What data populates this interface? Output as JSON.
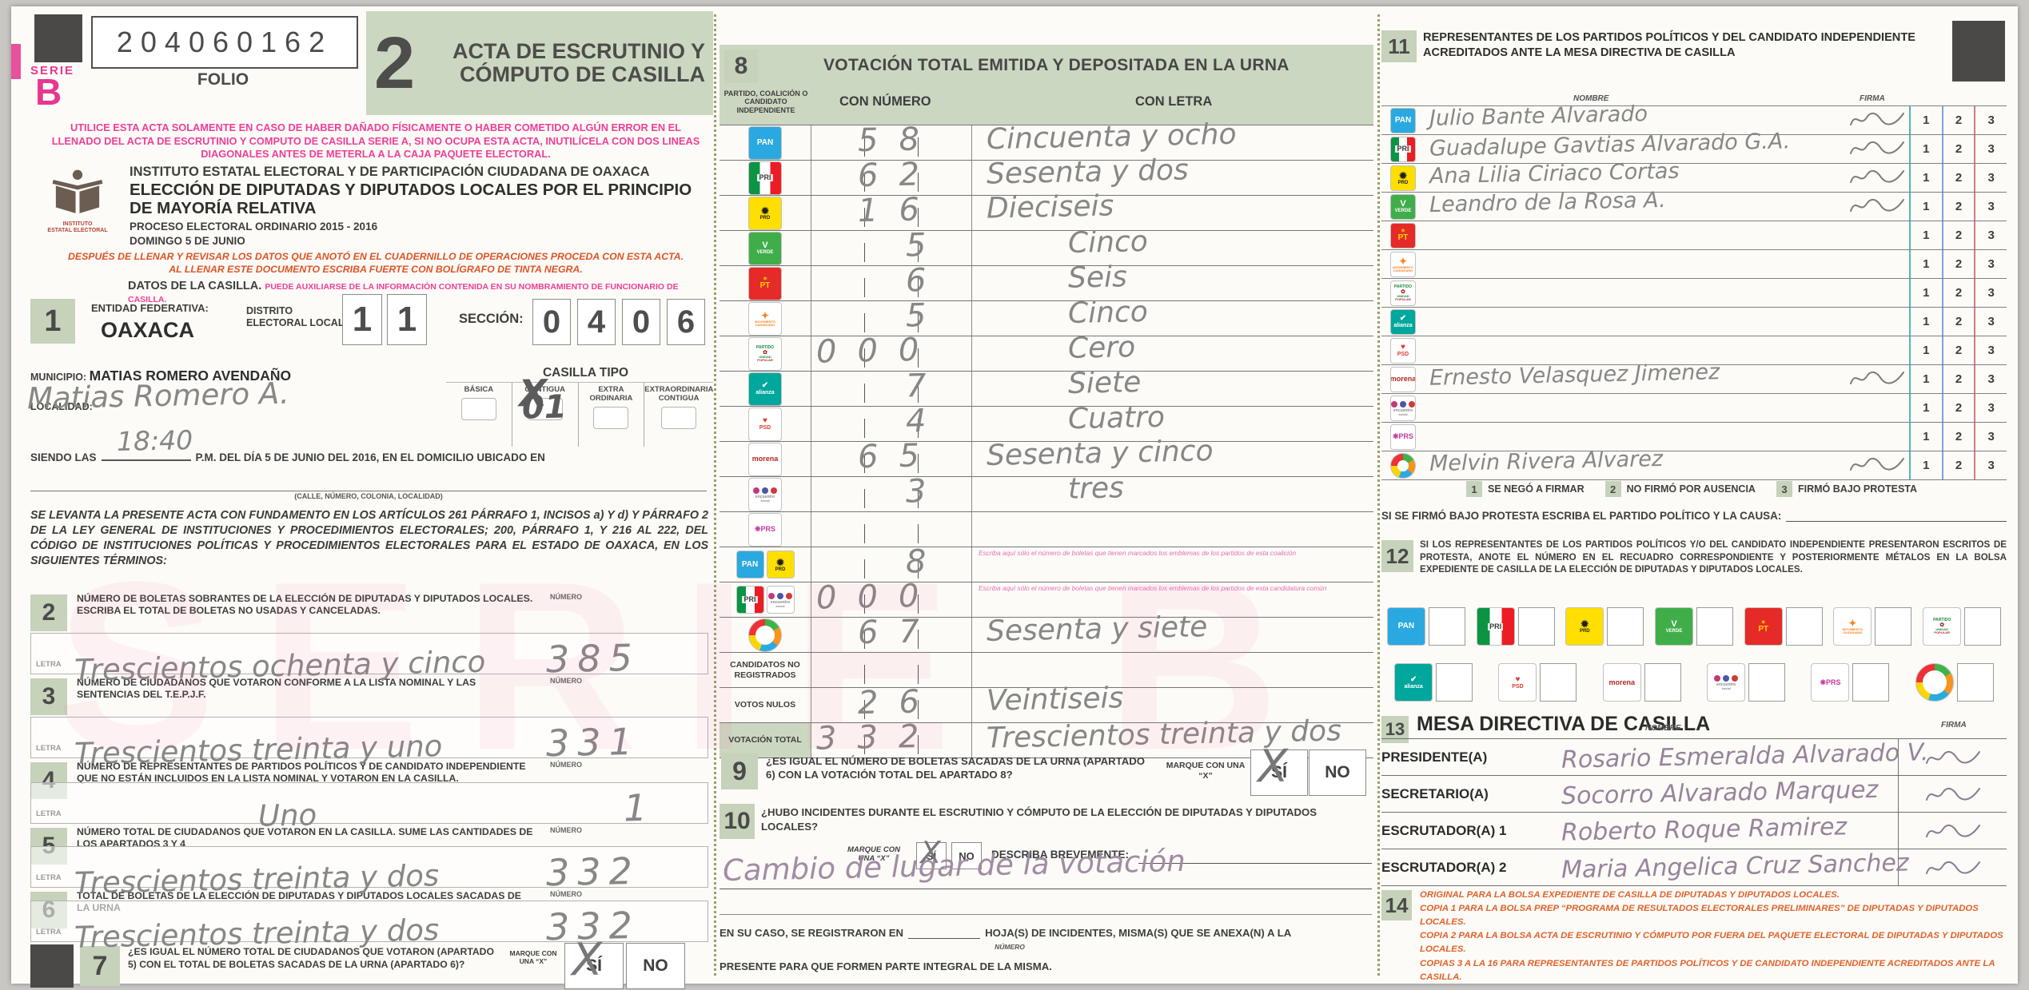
{
  "page": {
    "watermark": "SERIE B"
  },
  "labels": {
    "letra": "LETRA",
    "numero": "NÚMERO"
  },
  "header": {
    "serie_label": "SERIE",
    "serie_value": "B",
    "folio_value": "204060162",
    "folio_label": "FOLIO",
    "copy_number": "2",
    "title": "ACTA DE ESCRUTINIO Y CÓMPUTO DE CASILLA",
    "pink_warning": "UTILICE ESTA ACTA SOLAMENTE EN CASO DE HABER DAÑADO FÍSICAMENTE O HABER COMETIDO ALGÚN ERROR EN EL LLENADO DEL ACTA DE ESCRUTINIO Y COMPUTO DE CASILLA SERIE A, SI NO OCUPA ESTA ACTA, INUTILÍCELA CON DOS LINEAS DIAGONALES ANTES DE METERLA A LA CAJA PAQUETE ELECTORAL.",
    "institute_caption": "INSTITUTO\nESTATAL ELECTORAL",
    "institute": "INSTITUTO ESTATAL ELECTORAL Y DE PARTICIPACIÓN CIUDADANA DE OAXACA",
    "election": "ELECCIÓN DE DIPUTADAS Y DIPUTADOS LOCALES POR EL PRINCIPIO DE MAYORÍA RELATIVA",
    "process": "PROCESO ELECTORAL ORDINARIO 2015 - 2016",
    "day": "DOMINGO 5 DE JUNIO",
    "orange1": "DESPUÉS DE LLENAR Y REVISAR LOS DATOS QUE ANOTÓ EN EL CUADERNILLO DE OPERACIONES PROCEDA CON ESTA ACTA.",
    "orange2": "AL LLENAR ESTE DOCUMENTO ESCRIBA FUERTE CON BOLÍGRAFO DE TINTA NEGRA.",
    "datos_bold": "DATOS DE LA CASILLA.",
    "datos_pink": "PUEDE AUXILIARSE DE LA INFORMACIÓN CONTENIDA EN SU NOMBRAMIENTO DE FUNCIONARIO DE CASILLA."
  },
  "s1": {
    "no": "1",
    "entidad_label": "ENTIDAD FEDERATIVA:",
    "entidad": "OAXACA",
    "distrito_label": "DISTRITO\nELECTORAL LOCAL",
    "distrito": "11",
    "seccion_label": "SECCIÓN:",
    "seccion": "0406",
    "municipio_label": "MUNICIPIO:",
    "municipio": "MATIAS ROMERO AVENDAÑO",
    "casilla_tipo_label": "CASILLA TIPO",
    "tipos": [
      "BÁSICA",
      "CONTIGUA",
      "EXTRA ORDINARIA",
      "EXTRAORDINARIA CONTIGUA"
    ],
    "contigua_hw": "01",
    "localidad_label": "LOCALIDAD:",
    "localidad_hw": "Matias Romero A.",
    "siendo": "SIENDO LAS",
    "time_hw": "18:40",
    "siendo_rest": "P.M. DEL DÍA 5 DE JUNIO DEL 2016, EN EL DOMICILIO UBICADO EN",
    "addr_caption": "(CALLE, NÚMERO, COLONIA, LOCALIDAD)"
  },
  "legal": "SE LEVANTA LA PRESENTE ACTA CON FUNDAMENTO EN LOS ARTÍCULOS 261 PÁRRAFO 1, INCISOS a) Y d) Y PÁRRAFO 2 DE LA LEY GENERAL DE INSTITUCIONES Y PROCEDIMIENTOS ELECTORALES; 200, PÁRRAFO 1, Y 216 AL 222, DEL CÓDIGO DE INSTITUCIONES POLÍTICAS Y PROCEDIMIENTOS ELECTORALES PARA EL ESTADO DE OAXACA, EN LOS SIGUIENTES TÉRMINOS:",
  "tallies": [
    {
      "no": "2",
      "desc": "NÚMERO DE BOLETAS SOBRANTES DE LA ELECCIÓN DE DIPUTADAS Y DIPUTADOS LOCALES. ESCRIBA EL TOTAL DE BOLETAS NO USADAS Y CANCELADAS.",
      "letra": "Trescientos ochenta y cinco",
      "numero": "385"
    },
    {
      "no": "3",
      "desc": "NÚMERO DE CIUDADANOS QUE VOTARON CONFORME A LA LISTA NOMINAL Y LAS SENTENCIAS DEL T.E.P.J.F.",
      "letra": "Trescientos treinta y uno",
      "numero": "331"
    },
    {
      "no": "4",
      "desc": "NÚMERO DE REPRESENTANTES DE PARTIDOS POLÍTICOS Y DE CANDIDATO INDEPENDIENTE QUE NO ESTÁN INCLUIDOS EN LA LISTA NOMINAL Y VOTARON EN LA CASILLA.",
      "letra": "Uno",
      "numero": "1"
    },
    {
      "no": "5",
      "desc": "NÚMERO TOTAL DE CIUDADANOS QUE VOTARON EN LA CASILLA. SUME LAS CANTIDADES DE LOS APARTADOS 3 Y 4",
      "letra": "Trescientos treinta y dos",
      "numero": "332"
    },
    {
      "no": "6",
      "desc": "TOTAL DE BOLETAS DE LA ELECCIÓN DE DIPUTADAS Y DIPUTADOS LOCALES SACADAS DE LA URNA",
      "letra": "Trescientos treinta y dos",
      "numero": "332"
    }
  ],
  "s7": {
    "no": "7",
    "q": "¿ES IGUAL EL NÚMERO TOTAL DE CIUDADANOS QUE VOTARON (APARTADO 5) CON EL TOTAL DE BOLETAS SACADAS DE LA URNA (APARTADO 6)?",
    "marque": "MARQUE CON UNA “X”",
    "si": "SÍ",
    "no_label": "NO",
    "mark": "X",
    "answer": "si"
  },
  "s8": {
    "no": "8",
    "title": "VOTACIÓN TOTAL EMITIDA Y DEPOSITADA EN LA URNA",
    "col_party": "PARTIDO, COALICIÓN O CANDIDATO INDEPENDIENTE",
    "col_num": "CON NÚMERO",
    "col_letra": "CON LETRA",
    "rows": [
      {
        "type": "logo",
        "party": "pan",
        "numero": "58",
        "letra": "Cincuenta y ocho"
      },
      {
        "type": "logo",
        "party": "pri",
        "numero": "62",
        "letra": "Sesenta y dos"
      },
      {
        "type": "logo",
        "party": "prd",
        "numero": "16",
        "letra": "Dieciseis"
      },
      {
        "type": "logo",
        "party": "verde",
        "numero": "5",
        "letra": "Cinco"
      },
      {
        "type": "logo",
        "party": "pt",
        "numero": "6",
        "letra": "Seis"
      },
      {
        "type": "logo",
        "party": "mc",
        "numero": "5",
        "letra": "Cinco"
      },
      {
        "type": "logo",
        "party": "pup",
        "numero": "000",
        "letra": "Cero"
      },
      {
        "type": "logo",
        "party": "alianza",
        "numero": "7",
        "letra": "Siete"
      },
      {
        "type": "logo",
        "party": "psd",
        "numero": "4",
        "letra": "Cuatro"
      },
      {
        "type": "logo",
        "party": "morena",
        "numero": "65",
        "letra": "Sesenta y cinco"
      },
      {
        "type": "logo",
        "party": "es",
        "numero": "3",
        "letra": "tres"
      },
      {
        "type": "logo",
        "party": "prs",
        "numero": "",
        "letra": ""
      },
      {
        "type": "coal",
        "party": "pan_prd",
        "parties": [
          "pan",
          "prd"
        ],
        "numero": "8",
        "letra": "",
        "note": "Escriba aquí sólo el número de boletas que tienen marcados los emblemas de los partidos de esta coalición"
      },
      {
        "type": "coal",
        "party": "pri_es",
        "parties": [
          "pri",
          "es"
        ],
        "numero": "000",
        "letra": "",
        "note": "Escriba aquí sólo el número de boletas que tienen marcados los emblemas de los partidos de esta candidatura común"
      },
      {
        "type": "logo",
        "party": "indep",
        "numero": "67",
        "letra": "Sesenta y siete"
      },
      {
        "type": "label",
        "label": "CANDIDATOS NO REGISTRADOS",
        "numero": "",
        "letra": ""
      },
      {
        "type": "label",
        "label": "VOTOS NULOS",
        "numero": "26",
        "letra": "Veintiseis"
      },
      {
        "type": "total",
        "label": "VOTACIÓN TOTAL",
        "numero": "332",
        "letra": "Trescientos treinta y dos"
      }
    ]
  },
  "s9": {
    "no": "9",
    "q": "¿ES IGUAL EL NÚMERO DE BOLETAS SACADAS DE LA URNA (APARTADO 6) CON LA VOTACIÓN TOTAL DEL APARTADO 8?",
    "marque": "MARQUE CON UNA “X”",
    "si": "SÍ",
    "no_label": "NO",
    "mark": "X",
    "answer": "si"
  },
  "s10": {
    "no": "10",
    "q": "¿HUBO INCIDENTES DURANTE EL ESCRUTINIO Y CÓMPUTO DE LA ELECCIÓN DE DIPUTADAS Y DIPUTADOS LOCALES?",
    "marque": "MARQUE CON UNA “X”",
    "si": "SÍ",
    "no_label": "NO",
    "mark": "X",
    "answer": "si",
    "describa": "DESCRIBA BREVEMENTE:",
    "desc_hw": "Cambio de lugar de la votación"
  },
  "incidents": {
    "part1": "EN SU CASO, SE REGISTRARON EN",
    "numero_caption": "NÚMERO",
    "part2": "HOJA(S) DE INCIDENTES, MISMA(S) QUE SE ANEXA(N) A LA",
    "part3": "PRESENTE PARA QUE FORMEN PARTE INTEGRAL DE LA MISMA."
  },
  "s11": {
    "no": "11",
    "title": "REPRESENTANTES DE LOS PARTIDOS POLÍTICOS Y DEL CANDIDATO INDEPENDIENTE ACREDITADOS ANTE LA MESA DIRECTIVA DE CASILLA",
    "nombre": "NOMBRE",
    "firma": "FIRMA",
    "codes": [
      "1",
      "2",
      "3"
    ],
    "rows": [
      {
        "party": "pan",
        "name": "Julio Bante Alvarado",
        "signed": true
      },
      {
        "party": "pri",
        "name": "Guadalupe Gavtias Alvarado G.A.",
        "signed": true
      },
      {
        "party": "prd",
        "name": "Ana Lilia Ciriaco Cortas",
        "signed": true
      },
      {
        "party": "verde",
        "name": "Leandro de la Rosa A.",
        "signed": true
      },
      {
        "party": "pt",
        "name": "",
        "signed": false
      },
      {
        "party": "mc",
        "name": "",
        "signed": false
      },
      {
        "party": "pup",
        "name": "",
        "signed": false
      },
      {
        "party": "alianza",
        "name": "",
        "signed": false
      },
      {
        "party": "psd",
        "name": "",
        "signed": false
      },
      {
        "party": "morena",
        "name": "Ernesto Velasquez Jimenez",
        "signed": true
      },
      {
        "party": "es",
        "name": "",
        "signed": false
      },
      {
        "party": "prs",
        "name": "",
        "signed": false
      },
      {
        "party": "indep",
        "name": "Melvin Rivera Alvarez",
        "signed": true
      }
    ],
    "legend": [
      {
        "n": "1",
        "t": "SE NEGÓ A FIRMAR"
      },
      {
        "n": "2",
        "t": "NO FIRMÓ POR AUSENCIA"
      },
      {
        "n": "3",
        "t": "FIRMÓ BAJO PROTESTA"
      }
    ],
    "protest": "SI SE FIRMÓ BAJO PROTESTA ESCRIBA EL PARTIDO POLÍTICO Y LA CAUSA:"
  },
  "s12": {
    "no": "12",
    "text": "SI LOS REPRESENTANTES DE LOS PARTIDOS POLÍTICOS Y/O DEL CANDIDATO INDEPENDIENTE PRESENTARON ESCRITOS DE PROTESTA, ANOTE EL NÚMERO EN EL RECUADRO CORRESPONDIENTE Y POSTERIORMENTE MÉTALOS EN LA BOLSA EXPEDIENTE DE CASILLA DE LA ELECCIÓN DE DIPUTADAS Y DIPUTADOS LOCALES.",
    "row1": [
      "pan",
      "pri",
      "prd",
      "verde",
      "pt",
      "mc",
      "pup"
    ],
    "row2": [
      "alianza",
      "psd",
      "morena",
      "es",
      "prs",
      "indep"
    ]
  },
  "s13": {
    "no": "13",
    "title": "MESA DIRECTIVA DE CASILLA",
    "nombre": "NOMBRE",
    "firma": "FIRMA",
    "rows": [
      {
        "role": "PRESIDENTE(A)",
        "name": "Rosario Esmeralda Alvarado V."
      },
      {
        "role": "SECRETARIO(A)",
        "name": "Socorro Alvarado Marquez"
      },
      {
        "role": "ESCRUTADOR(A) 1",
        "name": "Roberto Roque Ramirez"
      },
      {
        "role": "ESCRUTADOR(A) 2",
        "name": "Maria Angelica Cruz Sanchez"
      }
    ]
  },
  "s14": {
    "no": "14",
    "lines": [
      "ORIGINAL PARA LA BOLSA EXPEDIENTE DE CASILLA DE DIPUTADAS Y DIPUTADOS LOCALES.",
      "COPIA 1 PARA LA BOLSA PREP “PROGRAMA DE RESULTADOS ELECTORALES PRELIMINARES” DE DIPUTADAS Y DIPUTADOS LOCALES.",
      "COPIA 2 PARA LA BOLSA ACTA DE ESCRUTINIO Y CÓMPUTO POR FUERA DEL PAQUETE ELECTORAL DE DIPUTADAS Y DIPUTADOS LOCALES.",
      "COPIAS 3 A LA 16 PARA REPRESENTANTES DE PARTIDOS POLÍTICOS Y DE CANDIDATO INDEPENDIENTE ACREDITADOS ANTE LA CASILLA."
    ]
  },
  "parties": {
    "pan": {
      "bg": "#2aa9e0",
      "lines": [
        [
          "PAN",
          "#ffffff",
          10
        ]
      ]
    },
    "pri": {
      "bg": "",
      "lines": [
        [
          "PRI",
          "#3a3a3a",
          9
        ]
      ]
    },
    "prd": {
      "bg": "#ffdf00",
      "lines": [
        [
          "✹",
          "#222222",
          12
        ],
        [
          "PRD",
          "#222222",
          6
        ]
      ]
    },
    "verde": {
      "bg": "#3fae49",
      "lines": [
        [
          "V",
          "#ffffff",
          11
        ],
        [
          "VERDE",
          "#ffffff",
          6
        ]
      ]
    },
    "pt": {
      "bg": "#e52a28",
      "lines": [
        [
          "✶",
          "#ffd400",
          7
        ],
        [
          "PT",
          "#ffd400",
          10
        ]
      ]
    },
    "mc": {
      "bg": "#ffffff",
      "lines": [
        [
          "✦",
          "#f58220",
          12
        ],
        [
          "MOVIMIENTO",
          "#f58220",
          4
        ],
        [
          "CIUDADANO",
          "#f58220",
          4
        ]
      ]
    },
    "pup": {
      "bg": "#ffffff",
      "lines": [
        [
          "PARTIDO",
          "#1d8a3c",
          5
        ],
        [
          "✿",
          "#b02a2a",
          7
        ],
        [
          "UNIDAD",
          "#1d8a3c",
          4
        ],
        [
          "POPULAR",
          "#b02a2a",
          4
        ]
      ]
    },
    "alianza": {
      "bg": "#00a79d",
      "lines": [
        [
          "✔",
          "#ffffff",
          10
        ],
        [
          "alianza",
          "#ffffff",
          7
        ]
      ]
    },
    "psd": {
      "bg": "#ffffff",
      "lines": [
        [
          "♥",
          "#e03a2f",
          10
        ],
        [
          "PSD",
          "#e03a2f",
          7
        ]
      ]
    },
    "morena": {
      "bg": "#ffffff",
      "lines": [
        [
          "morena",
          "#b5261e",
          9
        ]
      ]
    },
    "es": {
      "bg": "#ffffff",
      "lines": [
        [
          "encuentro",
          "#8a8a8a",
          5
        ],
        [
          "social",
          "#8a8a8a",
          4
        ]
      ]
    },
    "prs": {
      "bg": "#ffffff",
      "lines": [
        [
          "❋PRS",
          "#c13a9e",
          9
        ]
      ]
    },
    "indep": {
      "bg": "",
      "lines": []
    }
  }
}
